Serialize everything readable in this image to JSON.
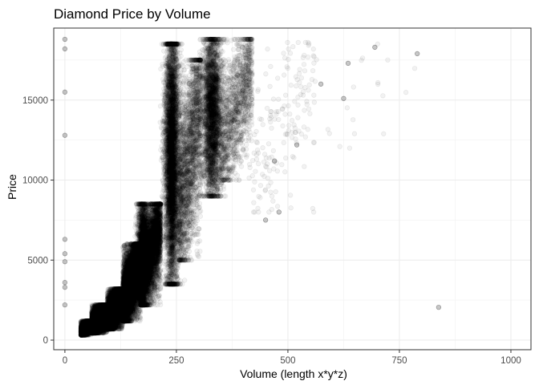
{
  "chart_data": {
    "type": "scatter",
    "title": "Diamond Price by Volume",
    "xlabel": "Volume (length x*y*z)",
    "ylabel": "Price",
    "xlim": [
      -25,
      1045
    ],
    "ylim": [
      -600,
      19500
    ],
    "x_ticks": [
      0,
      250,
      500,
      750,
      1000
    ],
    "y_ticks": [
      0,
      5000,
      10000,
      15000
    ],
    "x_tick_labels": [
      "0",
      "250",
      "500",
      "750",
      "1000"
    ],
    "y_tick_labels": [
      "0",
      "5000",
      "10000",
      "15000"
    ],
    "grid": true,
    "point_color": "#000000",
    "point_alpha": 0.05,
    "point_count_approx": 53940,
    "density_bands": [
      {
        "x": [
          36,
          60
        ],
        "y": [
          320,
          1200
        ],
        "weight": 7000
      },
      {
        "x": [
          60,
          95
        ],
        "y": [
          450,
          2200
        ],
        "weight": 9500
      },
      {
        "x": [
          95,
          130
        ],
        "y": [
          700,
          3200
        ],
        "weight": 8000
      },
      {
        "x": [
          130,
          170
        ],
        "y": [
          1200,
          6000
        ],
        "weight": 7500
      },
      {
        "x": [
          170,
          215
        ],
        "y": [
          2200,
          8500
        ],
        "weight": 6800
      },
      {
        "x": [
          215,
          255
        ],
        "y": [
          3500,
          18500
        ],
        "weight": 5200
      },
      {
        "x": [
          255,
          305
        ],
        "y": [
          5000,
          17500
        ],
        "weight": 2200
      },
      {
        "x": [
          305,
          350
        ],
        "y": [
          9000,
          18800
        ],
        "weight": 3300
      },
      {
        "x": [
          350,
          420
        ],
        "y": [
          10000,
          18800
        ],
        "weight": 1300
      },
      {
        "x": [
          420,
          560
        ],
        "y": [
          8000,
          18600
        ],
        "weight": 170
      },
      {
        "x": [
          560,
          800
        ],
        "y": [
          12000,
          18500
        ],
        "weight": 20
      }
    ],
    "outliers": [
      {
        "x": 0,
        "y": 18800
      },
      {
        "x": 0,
        "y": 18200
      },
      {
        "x": 0,
        "y": 15500
      },
      {
        "x": 0,
        "y": 12800
      },
      {
        "x": 0,
        "y": 6300
      },
      {
        "x": 0,
        "y": 5400
      },
      {
        "x": 0,
        "y": 4900
      },
      {
        "x": 0,
        "y": 3600
      },
      {
        "x": 0,
        "y": 3300
      },
      {
        "x": 0,
        "y": 2200
      },
      {
        "x": 838,
        "y": 2050
      },
      {
        "x": 790,
        "y": 17900
      },
      {
        "x": 695,
        "y": 18300
      },
      {
        "x": 635,
        "y": 17300
      },
      {
        "x": 625,
        "y": 15100
      },
      {
        "x": 574,
        "y": 16000
      },
      {
        "x": 520,
        "y": 12200
      },
      {
        "x": 470,
        "y": 11200
      },
      {
        "x": 480,
        "y": 8000
      },
      {
        "x": 450,
        "y": 7500
      }
    ]
  }
}
